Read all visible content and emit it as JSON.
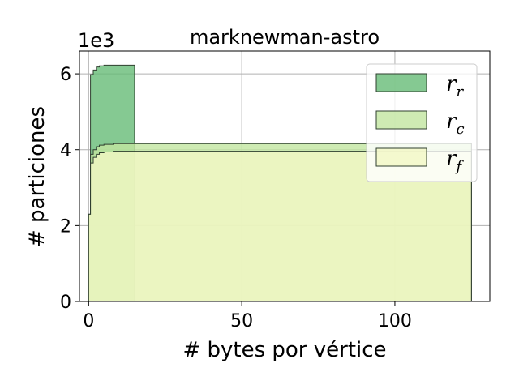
{
  "chart_data": {
    "type": "area",
    "title": "marknewman-astro",
    "xlabel": "# bytes por vértice",
    "ylabel": "# particiones",
    "y_multiplier": "1e3",
    "xlim": [
      -3,
      131
    ],
    "ylim": [
      0,
      6.6
    ],
    "xticks": [
      0,
      50,
      100
    ],
    "yticks": [
      0,
      2,
      4,
      6
    ],
    "xtick_labels": [
      "0",
      "50",
      "100"
    ],
    "ytick_labels": [
      "0",
      "2",
      "4",
      "6"
    ],
    "grid": true,
    "legend_position": "top-right",
    "series": [
      {
        "name": "r",
        "subscript": "r",
        "color": "#66bb77",
        "points": [
          [
            0,
            2.3
          ],
          [
            0.6,
            5.98
          ],
          [
            1.5,
            6.1
          ],
          [
            2.5,
            6.18
          ],
          [
            3.5,
            6.21
          ],
          [
            5,
            6.23
          ],
          [
            15,
            6.23
          ],
          [
            15,
            0
          ]
        ]
      },
      {
        "name": "r",
        "subscript": "c",
        "color": "#c2e6a0",
        "points": [
          [
            0,
            2.3
          ],
          [
            0.6,
            3.88
          ],
          [
            1.5,
            4.0
          ],
          [
            2.5,
            4.08
          ],
          [
            3.5,
            4.12
          ],
          [
            5,
            4.14
          ],
          [
            8,
            4.16
          ],
          [
            125,
            4.16
          ],
          [
            125,
            0
          ]
        ]
      },
      {
        "name": "r",
        "subscript": "f",
        "color": "#f2f8c4",
        "points": [
          [
            0,
            2.3
          ],
          [
            0.6,
            3.65
          ],
          [
            1.5,
            3.8
          ],
          [
            2.5,
            3.88
          ],
          [
            3.5,
            3.92
          ],
          [
            5,
            3.94
          ],
          [
            8,
            3.96
          ],
          [
            125,
            3.96
          ],
          [
            125,
            0
          ]
        ]
      }
    ]
  }
}
